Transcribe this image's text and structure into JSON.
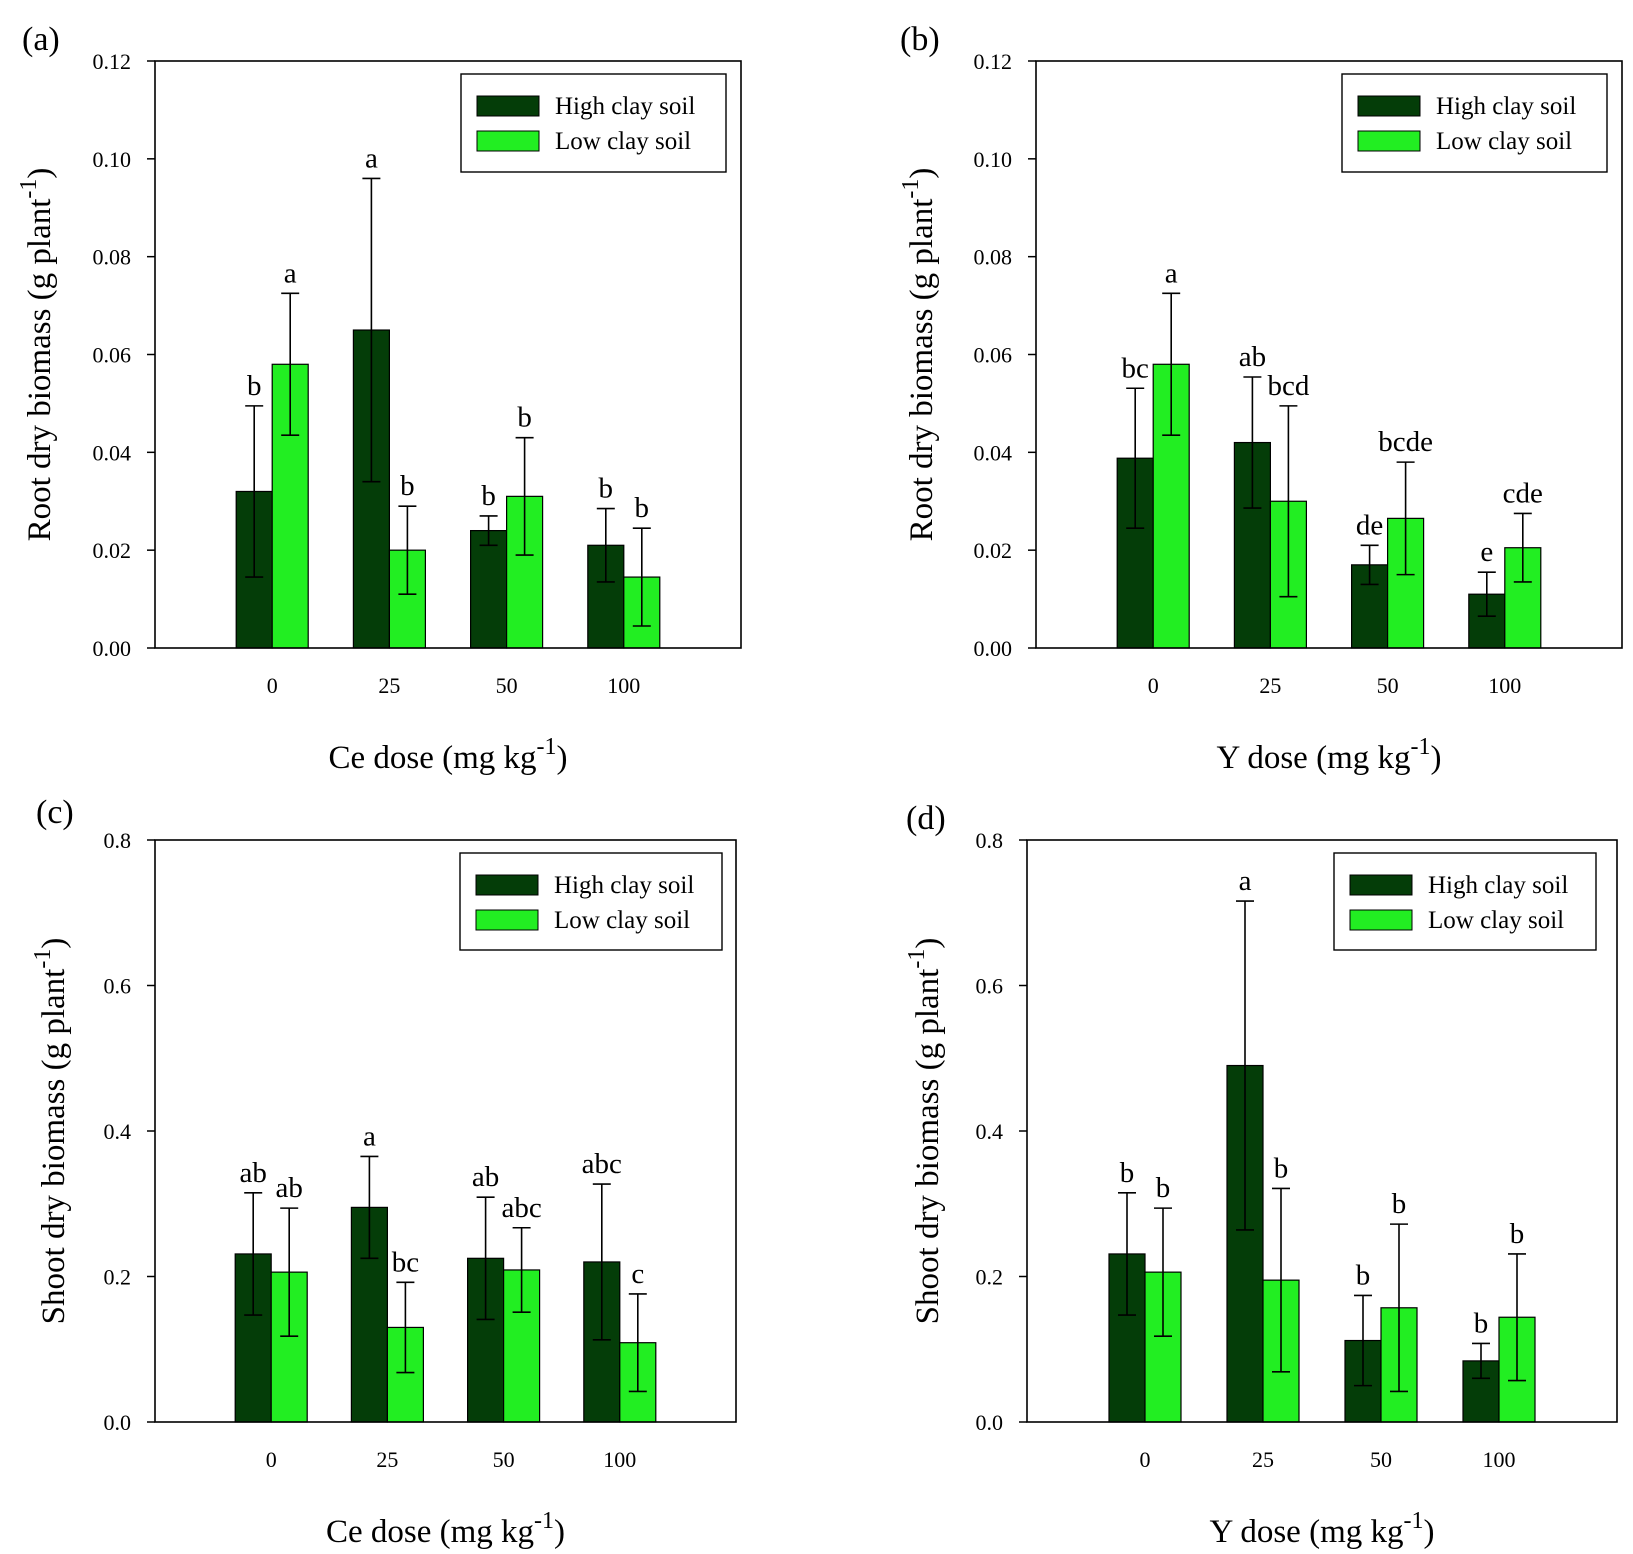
{
  "figure": {
    "legend_labels": [
      "High clay soil",
      "Low clay soil"
    ],
    "colors": {
      "high_clay": "#043d08",
      "low_clay": "#22ee22",
      "axis": "#000000"
    }
  },
  "chart_data": [
    {
      "panel": "(a)",
      "type": "bar",
      "categories": [
        "0",
        "25",
        "50",
        "100"
      ],
      "xlabel": "Ce dose (mg kg",
      "xlabel_sup": "-1",
      "xlabel_end": ")",
      "ylabel": "Root dry biomass (g plant",
      "ylabel_sup": "-1",
      "ylabel_end": ")",
      "ylim": [
        0,
        0.12
      ],
      "yticks": [
        "0.00",
        "0.02",
        "0.04",
        "0.06",
        "0.08",
        "0.10",
        "0.12"
      ],
      "legend_position": "top-right",
      "grid": false,
      "series": [
        {
          "name": "High clay soil",
          "values": [
            0.032,
            0.065,
            0.024,
            0.021
          ],
          "errors": [
            0.0175,
            0.031,
            0.003,
            0.0075
          ],
          "letters": [
            "b",
            "a",
            "b",
            "b"
          ]
        },
        {
          "name": "Low clay soil",
          "values": [
            0.058,
            0.02,
            0.031,
            0.0145
          ],
          "errors": [
            0.0145,
            0.009,
            0.012,
            0.01
          ],
          "letters": [
            "a",
            "b",
            "b",
            "b"
          ]
        }
      ]
    },
    {
      "panel": "(b)",
      "type": "bar",
      "categories": [
        "0",
        "25",
        "50",
        "100"
      ],
      "xlabel": "Y dose (mg kg",
      "xlabel_sup": "-1",
      "xlabel_end": ")",
      "ylabel": "Root dry biomass (g plant",
      "ylabel_sup": "-1",
      "ylabel_end": ")",
      "ylim": [
        0,
        0.12
      ],
      "yticks": [
        "0.00",
        "0.02",
        "0.04",
        "0.06",
        "0.08",
        "0.10",
        "0.12"
      ],
      "legend_position": "top-right",
      "grid": false,
      "series": [
        {
          "name": "High clay soil",
          "values": [
            0.0388,
            0.042,
            0.017,
            0.011
          ],
          "errors": [
            0.0143,
            0.0134,
            0.004,
            0.0045
          ],
          "letters": [
            "bc",
            "ab",
            "de",
            "e"
          ]
        },
        {
          "name": "Low clay soil",
          "values": [
            0.058,
            0.03,
            0.0265,
            0.0205
          ],
          "errors": [
            0.0145,
            0.0195,
            0.0115,
            0.007
          ],
          "letters": [
            "a",
            "bcd",
            "bcde",
            "cde"
          ]
        }
      ]
    },
    {
      "panel": "(c)",
      "type": "bar",
      "categories": [
        "0",
        "25",
        "50",
        "100"
      ],
      "xlabel": "Ce dose (mg kg",
      "xlabel_sup": "-1",
      "xlabel_end": ")",
      "ylabel": "Shoot dry biomass (g plant",
      "ylabel_sup": "-1",
      "ylabel_end": ")",
      "ylim": [
        0,
        0.8
      ],
      "yticks": [
        "0.0",
        "0.2",
        "0.4",
        "0.6",
        "0.8"
      ],
      "legend_position": "top-right",
      "grid": false,
      "series": [
        {
          "name": "High clay soil",
          "values": [
            0.231,
            0.295,
            0.225,
            0.22
          ],
          "errors": [
            0.084,
            0.07,
            0.084,
            0.107
          ],
          "letters": [
            "ab",
            "a",
            "ab",
            "abc"
          ]
        },
        {
          "name": "Low clay soil",
          "values": [
            0.206,
            0.13,
            0.209,
            0.109
          ],
          "errors": [
            0.088,
            0.062,
            0.058,
            0.067
          ],
          "letters": [
            "ab",
            "bc",
            "abc",
            "c"
          ]
        }
      ]
    },
    {
      "panel": "(d)",
      "type": "bar",
      "categories": [
        "0",
        "25",
        "50",
        "100"
      ],
      "xlabel": "Y dose (mg kg",
      "xlabel_sup": "-1",
      "xlabel_end": ")",
      "ylabel": "Shoot dry biomass (g plant",
      "ylabel_sup": "-1",
      "ylabel_end": ")",
      "ylim": [
        0,
        0.8
      ],
      "yticks": [
        "0.0",
        "0.2",
        "0.4",
        "0.6",
        "0.8"
      ],
      "legend_position": "top-right",
      "grid": false,
      "series": [
        {
          "name": "High clay soil",
          "values": [
            0.231,
            0.49,
            0.112,
            0.084
          ],
          "errors": [
            0.084,
            0.226,
            0.062,
            0.024
          ],
          "letters": [
            "b",
            "a",
            "b",
            "b"
          ]
        },
        {
          "name": "Low clay soil",
          "values": [
            0.206,
            0.195,
            0.157,
            0.144
          ],
          "errors": [
            0.088,
            0.126,
            0.115,
            0.087
          ],
          "letters": [
            "b",
            "b",
            "b",
            "b"
          ]
        }
      ]
    }
  ]
}
